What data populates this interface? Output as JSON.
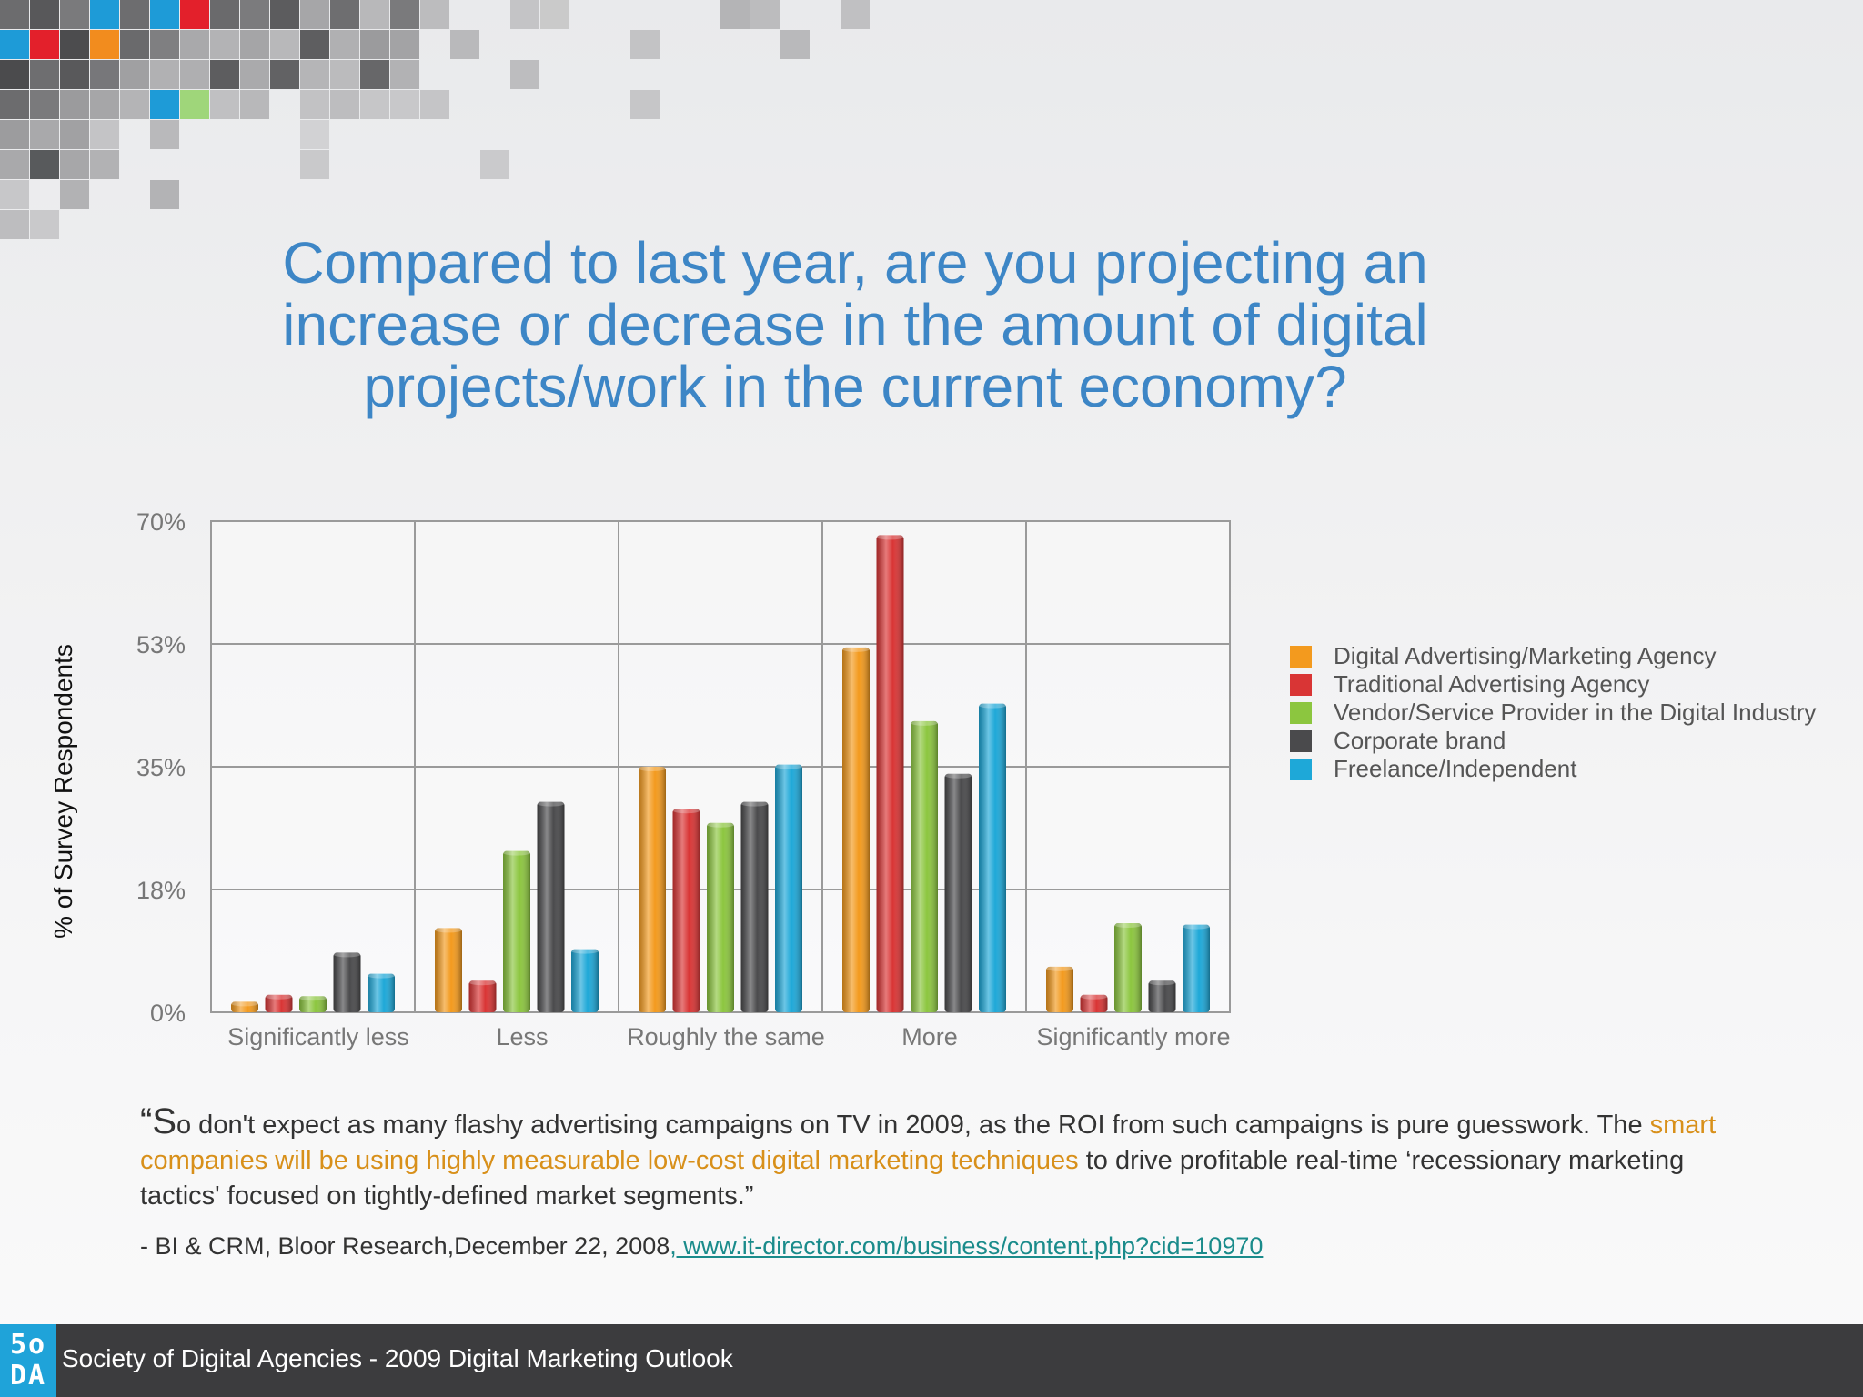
{
  "slide": {
    "title": "Compared to last year, are you projecting an increase or decrease in the amount of digital projects/work in the current economy?",
    "quote": {
      "open_mark": "“S",
      "part1": "o don't expect as many flashy advertising campaigns on TV in 2009, as the ROI from such campaigns is pure guesswork. The ",
      "highlight": "smart companies will be using highly measurable low-cost digital marketing techniques",
      "part2": " to drive profitable real-time ‘recessionary marketing tactics' focused on tightly-defined market segments.”"
    },
    "source": {
      "text": "- BI & CRM, Bloor Research,December 22, 2008",
      "link": ", www.it-director.com/business/content.php?cid=10970"
    },
    "footer": {
      "logo_top": "5o",
      "logo_bottom": "DA",
      "text": "Society of Digital Agencies - 2009 Digital Marketing Outlook"
    }
  },
  "colors": {
    "title": "#3d86c6",
    "highlight": "#d8901a",
    "link": "#1a8b8b",
    "footer_bg": "#3c3c3e",
    "logo_bg": "#1fa3d9"
  },
  "chart_data": {
    "type": "bar",
    "title": "",
    "xlabel": "",
    "ylabel": "% of Survey Respondents",
    "ylim": [
      0,
      70
    ],
    "y_ticks": [
      {
        "value": 0,
        "label": "0%"
      },
      {
        "value": 17.5,
        "label": "18%"
      },
      {
        "value": 35,
        "label": "35%"
      },
      {
        "value": 52.5,
        "label": "53%"
      },
      {
        "value": 70,
        "label": "70%"
      }
    ],
    "grid": true,
    "legend_position": "right",
    "categories": [
      "Significantly less",
      "Less",
      "Roughly the same",
      "More",
      "Significantly more"
    ],
    "series": [
      {
        "name": "Digital Advertising/Marketing Agency",
        "color": "#f39a1e",
        "values": [
          1.5,
          12,
          35,
          52,
          6.5
        ]
      },
      {
        "name": "Traditional Advertising Agency",
        "color": "#d93535",
        "values": [
          2.5,
          4.5,
          29,
          68,
          2.5
        ]
      },
      {
        "name": "Vendor/Service Provider in the Digital Industry",
        "color": "#8cc63f",
        "values": [
          2.3,
          23,
          27,
          41.5,
          12.7
        ]
      },
      {
        "name": "Corporate brand",
        "color": "#4a4a4c",
        "values": [
          8.5,
          30,
          30,
          34,
          4.5
        ]
      },
      {
        "name": "Freelance/Independent",
        "color": "#1ea8d8",
        "values": [
          5.5,
          9,
          35.3,
          44,
          12.5
        ]
      }
    ]
  }
}
